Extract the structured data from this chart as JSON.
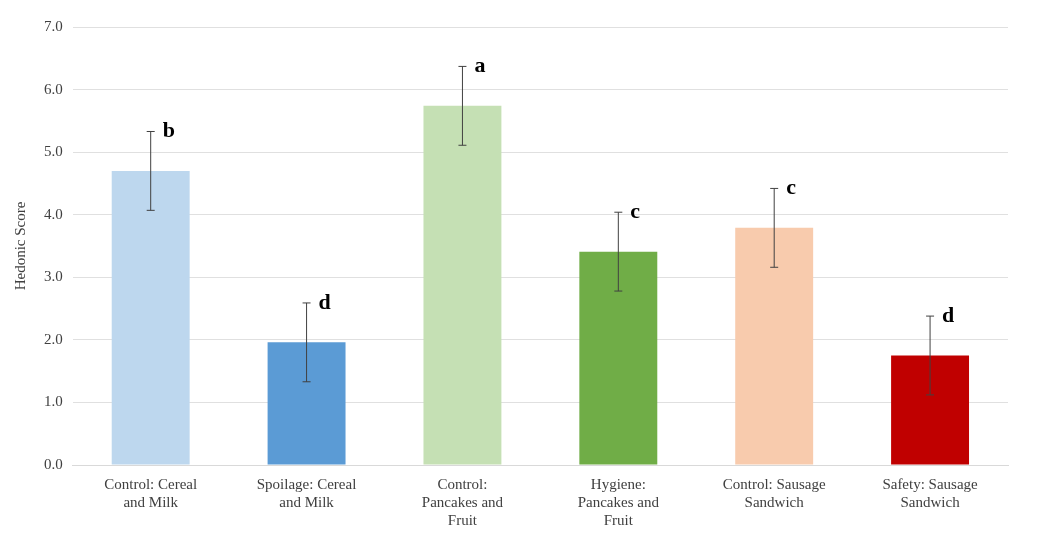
{
  "chart_data": {
    "type": "bar",
    "ylabel": "Hedonic Score",
    "categories": [
      "Control: Cereal and Milk",
      "Spoilage: Cereal and Milk",
      "Control: Pancakes and Fruit",
      "Hygiene: Pancakes and Fruit",
      "Control: Sausage Sandwich",
      "Safety: Sausage Sandwich"
    ],
    "values": [
      4.7,
      1.96,
      5.74,
      3.41,
      3.79,
      1.75
    ],
    "colors": [
      "#bdd7ee",
      "#5b9bd5",
      "#c5e0b4",
      "#70ad47",
      "#f8cbad",
      "#c00000"
    ],
    "errors": [
      0.63,
      0.63,
      0.63,
      0.63,
      0.63,
      0.63
    ],
    "ylim": [
      0,
      7
    ],
    "yticks": [
      {
        "value": 0,
        "label": "0.0"
      },
      {
        "value": 1,
        "label": "1.0"
      },
      {
        "value": 2,
        "label": "2.0"
      },
      {
        "value": 3,
        "label": "3.0"
      },
      {
        "value": 4,
        "label": "4.0"
      },
      {
        "value": 5,
        "label": "5.0"
      },
      {
        "value": 6,
        "label": "6.0"
      },
      {
        "value": 7,
        "label": "7.0"
      }
    ],
    "grid": "y",
    "legend": false,
    "annotations": [
      {
        "text": "b",
        "x": "Control: Cereal and Milk",
        "y": 5.33
      },
      {
        "text": "d",
        "x": "Spoilage: Cereal and Milk",
        "y": 2.59
      },
      {
        "text": "a",
        "x": "Control: Pancakes and Fruit",
        "y": 6.37
      },
      {
        "text": "c",
        "x": "Hygiene: Pancakes and Fruit",
        "y": 4.04
      },
      {
        "text": "c",
        "x": "Control: Sausage Sandwich",
        "y": 4.42
      },
      {
        "text": "d",
        "x": "Safety: Sausage Sandwich",
        "y": 2.38
      }
    ]
  }
}
